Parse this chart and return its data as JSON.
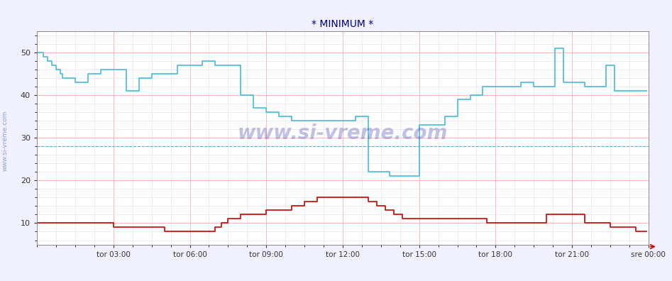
{
  "title": "* MINIMUM *",
  "title_color": "#00007f",
  "title_fontsize": 10,
  "bg_color": "#f0f0ff",
  "plot_bg_color": "#ffffff",
  "grid_color_major": "#ffaaaa",
  "grid_color_minor": "#ddddee",
  "ylim": [
    5,
    55
  ],
  "yticks": [
    10,
    20,
    30,
    40,
    50
  ],
  "watermark_text": "www.si-vreme.com",
  "watermark_color": "#3333aa",
  "watermark_alpha": 0.3,
  "side_text": "www.si-vreme.com",
  "side_color": "#3366aa",
  "legend_temp_color": "#cc0000",
  "legend_vlaga_color": "#55bbdd",
  "xtick_labels": [
    "tor 03:00",
    "tor 06:00",
    "tor 09:00",
    "tor 12:00",
    "tor 15:00",
    "tor 18:00",
    "tor 21:00",
    "sre 00:00"
  ],
  "n_points": 288,
  "temp_data": [
    10,
    10,
    10,
    10,
    10,
    10,
    10,
    10,
    10,
    10,
    10,
    10,
    10,
    10,
    10,
    10,
    10,
    10,
    10,
    10,
    10,
    10,
    10,
    10,
    10,
    10,
    10,
    10,
    10,
    10,
    10,
    10,
    10,
    10,
    10,
    10,
    9,
    9,
    9,
    9,
    9,
    9,
    9,
    9,
    9,
    9,
    9,
    9,
    9,
    9,
    9,
    9,
    9,
    9,
    9,
    9,
    9,
    9,
    9,
    9,
    8,
    8,
    8,
    8,
    8,
    8,
    8,
    8,
    8,
    8,
    8,
    8,
    8,
    8,
    8,
    8,
    8,
    8,
    8,
    8,
    8,
    8,
    8,
    8,
    9,
    9,
    9,
    10,
    10,
    10,
    11,
    11,
    11,
    11,
    11,
    11,
    12,
    12,
    12,
    12,
    12,
    12,
    12,
    12,
    12,
    12,
    12,
    12,
    13,
    13,
    13,
    13,
    13,
    13,
    13,
    13,
    13,
    13,
    13,
    13,
    14,
    14,
    14,
    14,
    14,
    14,
    15,
    15,
    15,
    15,
    15,
    15,
    16,
    16,
    16,
    16,
    16,
    16,
    16,
    16,
    16,
    16,
    16,
    16,
    16,
    16,
    16,
    16,
    16,
    16,
    16,
    16,
    16,
    16,
    16,
    16,
    15,
    15,
    15,
    15,
    14,
    14,
    14,
    14,
    13,
    13,
    13,
    13,
    12,
    12,
    12,
    12,
    11,
    11,
    11,
    11,
    11,
    11,
    11,
    11,
    11,
    11,
    11,
    11,
    11,
    11,
    11,
    11,
    11,
    11,
    11,
    11,
    11,
    11,
    11,
    11,
    11,
    11,
    11,
    11,
    11,
    11,
    11,
    11,
    11,
    11,
    11,
    11,
    11,
    11,
    11,
    11,
    10,
    10,
    10,
    10,
    10,
    10,
    10,
    10,
    10,
    10,
    10,
    10,
    10,
    10,
    10,
    10,
    10,
    10,
    10,
    10,
    10,
    10,
    10,
    10,
    10,
    10,
    10,
    10,
    12,
    12,
    12,
    12,
    12,
    12,
    12,
    12,
    12,
    12,
    12,
    12,
    12,
    12,
    12,
    12,
    12,
    12,
    10,
    10,
    10,
    10,
    10,
    10,
    10,
    10,
    10,
    10,
    10,
    10,
    9,
    9,
    9,
    9,
    9,
    9,
    9,
    9,
    9,
    9,
    9,
    9,
    8,
    8,
    8,
    8,
    8,
    8
  ],
  "vlaga_data": [
    50,
    50,
    50,
    49,
    49,
    48,
    48,
    47,
    47,
    46,
    46,
    45,
    44,
    44,
    44,
    44,
    44,
    44,
    43,
    43,
    43,
    43,
    43,
    43,
    45,
    45,
    45,
    45,
    45,
    45,
    46,
    46,
    46,
    46,
    46,
    46,
    46,
    46,
    46,
    46,
    46,
    46,
    41,
    41,
    41,
    41,
    41,
    41,
    44,
    44,
    44,
    44,
    44,
    44,
    45,
    45,
    45,
    45,
    45,
    45,
    45,
    45,
    45,
    45,
    45,
    45,
    47,
    47,
    47,
    47,
    47,
    47,
    47,
    47,
    47,
    47,
    47,
    47,
    48,
    48,
    48,
    48,
    48,
    48,
    47,
    47,
    47,
    47,
    47,
    47,
    47,
    47,
    47,
    47,
    47,
    47,
    40,
    40,
    40,
    40,
    40,
    40,
    37,
    37,
    37,
    37,
    37,
    37,
    36,
    36,
    36,
    36,
    36,
    36,
    35,
    35,
    35,
    35,
    35,
    35,
    34,
    34,
    34,
    34,
    34,
    34,
    34,
    34,
    34,
    34,
    34,
    34,
    34,
    34,
    34,
    34,
    34,
    34,
    34,
    34,
    34,
    34,
    34,
    34,
    34,
    34,
    34,
    34,
    34,
    34,
    35,
    35,
    35,
    35,
    35,
    35,
    22,
    22,
    22,
    22,
    22,
    22,
    22,
    22,
    22,
    22,
    21,
    21,
    21,
    21,
    21,
    21,
    21,
    21,
    21,
    21,
    21,
    21,
    21,
    21,
    33,
    33,
    33,
    33,
    33,
    33,
    33,
    33,
    33,
    33,
    33,
    33,
    35,
    35,
    35,
    35,
    35,
    35,
    39,
    39,
    39,
    39,
    39,
    39,
    40,
    40,
    40,
    40,
    40,
    40,
    42,
    42,
    42,
    42,
    42,
    42,
    42,
    42,
    42,
    42,
    42,
    42,
    42,
    42,
    42,
    42,
    42,
    42,
    43,
    43,
    43,
    43,
    43,
    43,
    42,
    42,
    42,
    42,
    42,
    42,
    42,
    42,
    42,
    42,
    51,
    51,
    51,
    51,
    43,
    43,
    43,
    43,
    43,
    43,
    43,
    43,
    43,
    43,
    42,
    42,
    42,
    42,
    42,
    42,
    42,
    42,
    42,
    42,
    47,
    47,
    47,
    47,
    41,
    41,
    41,
    41,
    41,
    41,
    41,
    41,
    41,
    41,
    41,
    41,
    41,
    41,
    41,
    41
  ],
  "line_color_temp": "#cc0000",
  "line_color_vlaga": "#44bbdd",
  "line_width": 1.2,
  "dashed_line_value": 28.0,
  "dashed_line_color": "#44aacc",
  "arrow_color": "#cc0000"
}
